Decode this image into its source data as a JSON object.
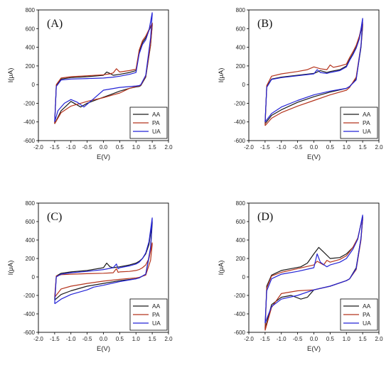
{
  "colors": {
    "AA": "#1a1a1a",
    "PA": "#b5341d",
    "UA": "#2323d6"
  },
  "chart_data": [
    {
      "type": "line",
      "panel_label": "(A)",
      "xlabel": "E(V)",
      "ylabel": "I(μA)",
      "xlim": [
        -2.0,
        2.0
      ],
      "ylim": [
        -600,
        800
      ],
      "xticks": [
        "-2.0",
        "-1.5",
        "-1.0",
        "-0.5",
        "0.0",
        "0.5",
        "1.0",
        "1.5",
        "2.0"
      ],
      "yticks": [
        "-600",
        "-400",
        "-200",
        "0",
        "200",
        "400",
        "600",
        "800"
      ],
      "legend_position": "bottom-right",
      "series": [
        {
          "name": "AA",
          "x": [
            -1.5,
            -1.45,
            -1.3,
            -1.0,
            -0.5,
            0.0,
            0.1,
            0.2,
            0.3,
            0.5,
            0.8,
            1.0,
            1.1,
            1.2,
            1.3,
            1.4,
            1.5,
            1.5,
            1.45,
            1.3,
            1.15,
            1.1,
            1.0,
            0.8,
            0.5,
            0.2,
            -0.2,
            -0.5,
            -0.7,
            -1.0,
            -1.3,
            -1.5
          ],
          "y": [
            -420,
            -10,
            60,
            75,
            85,
            100,
            135,
            120,
            100,
            110,
            130,
            150,
            350,
            450,
            500,
            580,
            650,
            630,
            420,
            80,
            -10,
            -20,
            -25,
            -40,
            -70,
            -110,
            -160,
            -200,
            -240,
            -180,
            -280,
            -420
          ]
        },
        {
          "name": "PA",
          "x": [
            -1.5,
            -1.45,
            -1.3,
            -1.0,
            -0.5,
            0.0,
            0.2,
            0.3,
            0.4,
            0.5,
            0.8,
            1.0,
            1.1,
            1.2,
            1.3,
            1.4,
            1.5,
            1.5,
            1.45,
            1.3,
            1.15,
            1.1,
            1.0,
            0.8,
            0.5,
            0.3,
            0.0,
            -0.5,
            -1.0,
            -1.3,
            -1.5
          ],
          "y": [
            -420,
            0,
            70,
            85,
            95,
            105,
            115,
            125,
            170,
            135,
            150,
            165,
            370,
            470,
            520,
            590,
            660,
            640,
            430,
            90,
            -5,
            -15,
            -20,
            -40,
            -90,
            -110,
            -140,
            -180,
            -230,
            -300,
            -420
          ]
        },
        {
          "name": "UA",
          "x": [
            -1.5,
            -1.45,
            -1.3,
            -1.0,
            -0.5,
            0.0,
            0.3,
            0.5,
            0.8,
            1.0,
            1.1,
            1.2,
            1.3,
            1.4,
            1.5,
            1.5,
            1.45,
            1.3,
            1.15,
            1.1,
            1.0,
            0.5,
            0.0,
            -0.3,
            -0.6,
            -0.8,
            -1.0,
            -1.2,
            -1.4,
            -1.5
          ],
          "y": [
            -400,
            -20,
            50,
            60,
            65,
            70,
            80,
            90,
            110,
            130,
            330,
            430,
            480,
            580,
            770,
            750,
            500,
            100,
            0,
            -10,
            -15,
            -30,
            -60,
            -150,
            -240,
            -190,
            -160,
            -200,
            -280,
            -400
          ]
        }
      ]
    },
    {
      "type": "line",
      "panel_label": "(B)",
      "xlabel": "E(V)",
      "ylabel": "I(μA)",
      "xlim": [
        -2.0,
        2.0
      ],
      "ylim": [
        -600,
        800
      ],
      "xticks": [
        "-2.0",
        "-1.5",
        "-1.0",
        "-0.5",
        "0.0",
        "0.5",
        "1.0",
        "1.5",
        "2.0"
      ],
      "yticks": [
        "-600",
        "-400",
        "-200",
        "0",
        "200",
        "400",
        "600",
        "800"
      ],
      "legend_position": "bottom-right",
      "series": [
        {
          "name": "AA",
          "x": [
            -1.5,
            -1.45,
            -1.3,
            -1.0,
            -0.5,
            0.0,
            0.2,
            0.4,
            0.5,
            0.8,
            1.0,
            1.1,
            1.2,
            1.3,
            1.4,
            1.5,
            1.5,
            1.45,
            1.3,
            1.1,
            1.0,
            0.5,
            0.0,
            -0.5,
            -1.0,
            -1.3,
            -1.5
          ],
          "y": [
            -420,
            -20,
            60,
            80,
            100,
            120,
            150,
            130,
            140,
            160,
            200,
            270,
            330,
            400,
            500,
            650,
            620,
            400,
            60,
            -20,
            -40,
            -80,
            -130,
            -190,
            -270,
            -330,
            -420
          ]
        },
        {
          "name": "PA",
          "x": [
            -1.5,
            -1.45,
            -1.3,
            -1.0,
            -0.5,
            -0.2,
            0.0,
            0.2,
            0.4,
            0.5,
            0.6,
            0.8,
            1.0,
            1.1,
            1.2,
            1.3,
            1.4,
            1.5,
            1.5,
            1.45,
            1.3,
            1.1,
            1.0,
            0.5,
            0.0,
            -0.5,
            -1.0,
            -1.3,
            -1.5
          ],
          "y": [
            -440,
            -10,
            90,
            115,
            140,
            160,
            190,
            170,
            160,
            210,
            185,
            200,
            220,
            290,
            350,
            420,
            520,
            670,
            640,
            420,
            80,
            -30,
            -60,
            -110,
            -170,
            -230,
            -300,
            -360,
            -440
          ]
        },
        {
          "name": "UA",
          "x": [
            -1.5,
            -1.45,
            -1.3,
            -1.0,
            -0.5,
            0.0,
            0.1,
            0.2,
            0.4,
            0.5,
            0.8,
            1.0,
            1.1,
            1.2,
            1.3,
            1.4,
            1.5,
            1.5,
            1.45,
            1.3,
            1.1,
            1.0,
            0.5,
            0.0,
            -0.5,
            -1.0,
            -1.3,
            -1.5
          ],
          "y": [
            -400,
            -30,
            55,
            75,
            95,
            115,
            160,
            130,
            120,
            130,
            150,
            190,
            260,
            320,
            390,
            490,
            710,
            690,
            420,
            50,
            -20,
            -40,
            -70,
            -110,
            -170,
            -240,
            -310,
            -400
          ]
        }
      ]
    },
    {
      "type": "line",
      "panel_label": "(C)",
      "xlabel": "E(V)",
      "ylabel": "I(μA)",
      "xlim": [
        -2.0,
        2.0
      ],
      "ylim": [
        -600,
        800
      ],
      "xticks": [
        "-2.0",
        "-1.5",
        "-1.0",
        "-0.5",
        "0.0",
        "0.5",
        "1.0",
        "1.5",
        "2.0"
      ],
      "yticks": [
        "-600",
        "-400",
        "-200",
        "0",
        "200",
        "400",
        "600",
        "800"
      ],
      "legend_position": "bottom-right",
      "series": [
        {
          "name": "AA",
          "x": [
            -1.5,
            -1.45,
            -1.3,
            -1.0,
            -0.5,
            0.0,
            0.1,
            0.2,
            0.3,
            0.5,
            0.8,
            1.0,
            1.1,
            1.2,
            1.3,
            1.4,
            1.5,
            1.5,
            1.45,
            1.3,
            1.1,
            1.0,
            0.5,
            0.0,
            -0.5,
            -1.0,
            -1.3,
            -1.5
          ],
          "y": [
            -250,
            10,
            40,
            55,
            70,
            100,
            150,
            110,
            100,
            110,
            130,
            150,
            170,
            200,
            250,
            350,
            600,
            580,
            300,
            30,
            -10,
            -20,
            -40,
            -70,
            -100,
            -150,
            -190,
            -250
          ]
        },
        {
          "name": "PA",
          "x": [
            -1.5,
            -1.45,
            -1.3,
            -1.0,
            -0.5,
            0.0,
            0.3,
            0.4,
            0.45,
            0.5,
            0.8,
            1.0,
            1.1,
            1.2,
            1.3,
            1.4,
            1.5,
            1.5,
            1.45,
            1.3,
            1.1,
            1.0,
            0.5,
            0.0,
            -0.5,
            -1.0,
            -1.3,
            -1.5
          ],
          "y": [
            -220,
            10,
            25,
            30,
            35,
            40,
            45,
            90,
            50,
            55,
            60,
            70,
            80,
            100,
            130,
            200,
            370,
            350,
            180,
            20,
            -5,
            -10,
            -25,
            -45,
            -70,
            -100,
            -130,
            -220
          ]
        },
        {
          "name": "UA",
          "x": [
            -1.5,
            -1.45,
            -1.3,
            -1.0,
            -0.5,
            0.0,
            0.3,
            0.4,
            0.45,
            0.5,
            0.8,
            1.0,
            1.1,
            1.2,
            1.3,
            1.4,
            1.5,
            1.5,
            1.45,
            1.3,
            1.1,
            1.0,
            0.5,
            0.0,
            -0.3,
            -0.5,
            -1.0,
            -1.3,
            -1.5
          ],
          "y": [
            -290,
            0,
            30,
            45,
            60,
            80,
            100,
            140,
            90,
            100,
            120,
            140,
            160,
            200,
            260,
            380,
            640,
            620,
            320,
            30,
            -10,
            -20,
            -50,
            -90,
            -110,
            -140,
            -190,
            -240,
            -290
          ]
        }
      ]
    },
    {
      "type": "line",
      "panel_label": "(D)",
      "xlabel": "E(V)",
      "ylabel": "I(μA)",
      "xlim": [
        -2.0,
        2.0
      ],
      "ylim": [
        -600,
        800
      ],
      "xticks": [
        "-2.0",
        "-1.5",
        "-1.0",
        "-0.5",
        "0.0",
        "0.5",
        "1.0",
        "1.5",
        "2.0"
      ],
      "yticks": [
        "-600",
        "-400",
        "-200",
        "0",
        "200",
        "400",
        "600",
        "800"
      ],
      "legend_position": "bottom-right",
      "series": [
        {
          "name": "AA",
          "x": [
            -1.5,
            -1.45,
            -1.3,
            -1.0,
            -0.7,
            -0.4,
            -0.2,
            0.0,
            0.15,
            0.3,
            0.5,
            0.8,
            1.0,
            1.2,
            1.35,
            1.5,
            1.5,
            1.45,
            1.3,
            1.1,
            1.0,
            0.5,
            0.0,
            -0.2,
            -0.4,
            -0.7,
            -1.0,
            -1.3,
            -1.5
          ],
          "y": [
            -560,
            -100,
            20,
            70,
            90,
            110,
            150,
            250,
            320,
            270,
            200,
            210,
            250,
            320,
            420,
            650,
            620,
            420,
            100,
            -20,
            -40,
            -100,
            -140,
            -220,
            -240,
            -200,
            -220,
            -300,
            -560
          ]
        },
        {
          "name": "PA",
          "x": [
            -1.5,
            -1.45,
            -1.3,
            -1.0,
            -0.5,
            0.0,
            0.1,
            0.3,
            0.4,
            0.5,
            0.8,
            1.0,
            1.2,
            1.35,
            1.5,
            1.5,
            1.45,
            1.3,
            1.1,
            1.0,
            0.5,
            0.0,
            -0.5,
            -1.0,
            -1.3,
            -1.5
          ],
          "y": [
            -580,
            -120,
            10,
            50,
            90,
            130,
            170,
            130,
            180,
            160,
            190,
            230,
            320,
            420,
            650,
            620,
            400,
            80,
            -20,
            -40,
            -100,
            -140,
            -150,
            -180,
            -330,
            -580
          ]
        },
        {
          "name": "UA",
          "x": [
            -1.5,
            -1.45,
            -1.3,
            -1.0,
            -0.5,
            0.0,
            0.1,
            0.2,
            0.4,
            0.5,
            0.8,
            1.0,
            1.2,
            1.35,
            1.5,
            1.5,
            1.45,
            1.3,
            1.1,
            1.0,
            0.5,
            0.0,
            -0.5,
            -1.0,
            -1.3,
            -1.5
          ],
          "y": [
            -500,
            -150,
            -20,
            30,
            60,
            100,
            250,
            160,
            110,
            130,
            160,
            200,
            300,
            410,
            670,
            650,
            420,
            90,
            -20,
            -40,
            -100,
            -140,
            -200,
            -240,
            -320,
            -500
          ]
        }
      ]
    }
  ]
}
